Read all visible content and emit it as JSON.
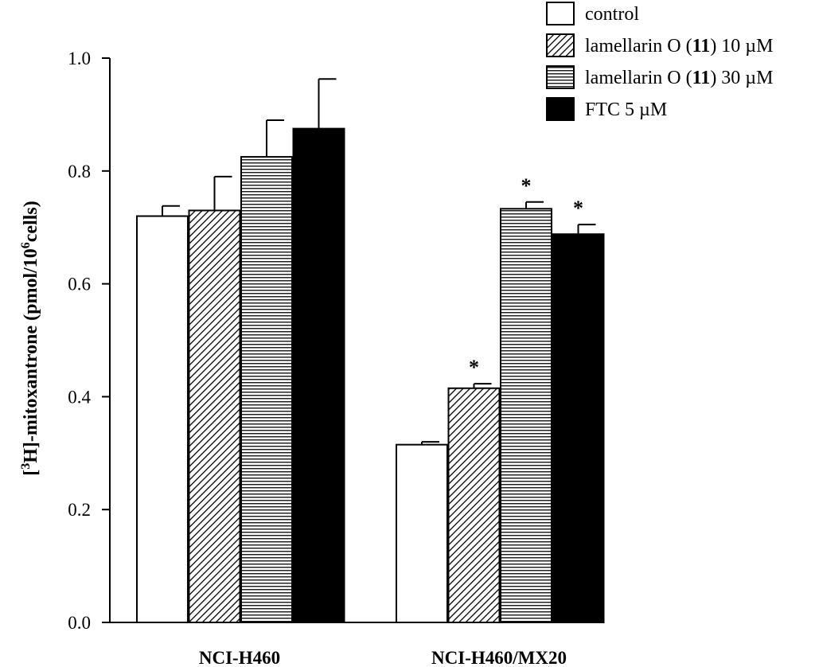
{
  "chart_data": {
    "type": "bar",
    "title": "",
    "xlabel": "",
    "ylabel": {
      "prefix": "[",
      "sup1": "3",
      "mid": "H]-mitoxantrone (pmol/10",
      "sup2": "6",
      "suffix": "cells)"
    },
    "ylim": [
      0,
      1.0
    ],
    "yticks": [
      "0.0",
      "0.2",
      "0.4",
      "0.6",
      "0.8",
      "1.0"
    ],
    "categories": [
      "NCI-H460",
      "NCI-H460/MX20"
    ],
    "series": [
      {
        "name": "control",
        "label_pre": "control",
        "label_bold": "",
        "label_post": "",
        "pattern": "white",
        "values": [
          0.72,
          0.315
        ],
        "errors": [
          0.018,
          0.005
        ],
        "significant": [
          false,
          false
        ]
      },
      {
        "name": "lamellarin O (11) 10 µM",
        "label_pre": "lamellarin O (",
        "label_bold": "11",
        "label_post": ") 10 µM",
        "pattern": "diagonal",
        "values": [
          0.73,
          0.415
        ],
        "errors": [
          0.06,
          0.008
        ],
        "significant": [
          false,
          true
        ]
      },
      {
        "name": "lamellarin O (11) 30 µM",
        "label_pre": "lamellarin O (",
        "label_bold": "11",
        "label_post": ") 30 µM",
        "pattern": "horizontal",
        "values": [
          0.825,
          0.733
        ],
        "errors": [
          0.065,
          0.012
        ],
        "significant": [
          false,
          true
        ]
      },
      {
        "name": "FTC 5 µM",
        "label_pre": "FTC 5 µM",
        "label_bold": "",
        "label_post": "",
        "pattern": "black",
        "values": [
          0.875,
          0.688
        ],
        "errors": [
          0.088,
          0.017
        ],
        "significant": [
          false,
          true
        ]
      }
    ],
    "significance_marker": "*",
    "legend_position": "top-right"
  }
}
